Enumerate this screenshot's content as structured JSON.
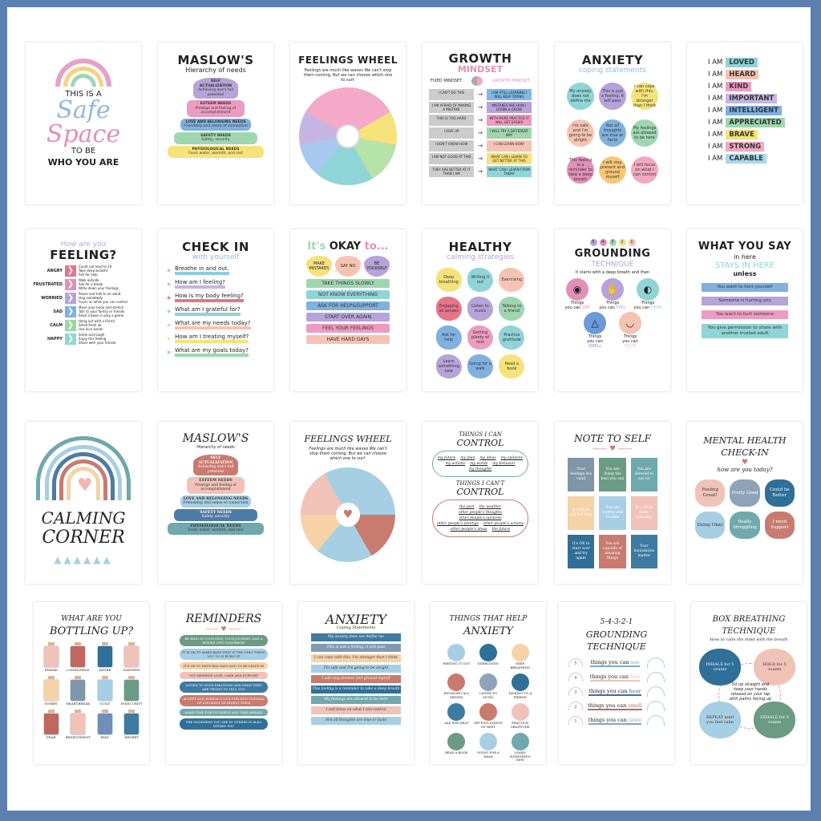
{
  "colors": {
    "border": "#5b7fae",
    "background": "#ffffff"
  },
  "posters": [
    {
      "title_lines": [
        "THIS IS A",
        "Safe",
        "Space",
        "TO BE",
        "WHO YOU ARE"
      ]
    },
    {
      "title": "MASLOW'S",
      "subtitle": "Hierarchy of needs",
      "levels": [
        {
          "name": "SELF ACTUALIZATION",
          "desc": "Achieving one's full potential",
          "color": "#b6a3d9"
        },
        {
          "name": "ESTEEM NEEDS",
          "desc": "Prestige and feeling of accomplishment",
          "color": "#ec9cc0"
        },
        {
          "name": "LOVE AND BELONGING NEEDS",
          "desc": "Friendship and sense of connection",
          "color": "#7fb0e0"
        },
        {
          "name": "SAFETY NEEDS",
          "desc": "Safety, security",
          "color": "#9fd6b0"
        },
        {
          "name": "PHYSIOLOGICAL NEEDS",
          "desc": "Food, water, warmth, and rest",
          "color": "#f6e27a"
        }
      ]
    },
    {
      "title": "FEELINGS WHEEL",
      "caption": "Feelings are much like waves We can't stop them coming, But we can choose which one to surf."
    },
    {
      "title": "GROWTH",
      "subtitle": "MINDSET",
      "col_fixed": "FIXED MINDSET",
      "col_growth": "GROWTH MINDSET",
      "rows": [
        {
          "fixed": "I CAN'T DO THIS",
          "growth": "I AM STILL LEARNING I WILL KEEP TRYING",
          "color": "#7fb8e6"
        },
        {
          "fixed": "I AM AFRAID OF MAKING A MISTAKE",
          "growth": "MISTAKES ARE HOW I LEARN & GROW",
          "color": "#b6a3d9"
        },
        {
          "fixed": "THIS IS TOO HARD",
          "growth": "WITH MORE PRACTICE IT WILL GET EASIER",
          "color": "#ec9cc0"
        },
        {
          "fixed": "I GIVE UP",
          "growth": "I WILL TRY A DIFFERENT WAY",
          "color": "#9fd6b0"
        },
        {
          "fixed": "I DON'T KNOW HOW",
          "growth": "I CAN LEARN HOW!",
          "color": "#f6c3b2"
        },
        {
          "fixed": "I AM NOT GOOD AT THIS",
          "growth": "WHAT CAN I LEARN TO GET BETTER AT THIS",
          "color": "#f6e27a"
        },
        {
          "fixed": "THEY ARE BETTER AT IT THAN I AM",
          "growth": "WHAT CAN I LEARN FROM THEM?",
          "color": "#8fd4d6"
        }
      ]
    },
    {
      "title": "ANXIETY",
      "subtitle": "coping statements",
      "items": [
        {
          "text": "My anxiety does not define me",
          "color": "#8fd4d6"
        },
        {
          "text": "This is just a feeling. It will pass",
          "color": "#b6a3d9"
        },
        {
          "text": "I can cope with this. I'm stronger than I think",
          "color": "#f6e27a"
        },
        {
          "text": "I'm safe and I'm going to be alright",
          "color": "#f6c3b2"
        },
        {
          "text": "Not all thoughts are true or facts",
          "color": "#7fb0e0"
        },
        {
          "text": "My feelings are allowed to be here",
          "color": "#9fd6b0"
        },
        {
          "text": "This feeling is a reminder to take a deep breath",
          "color": "#e38fb8"
        },
        {
          "text": "I will stay present and ground myself",
          "color": "#f7c873"
        },
        {
          "text": "I will focus on what I can control",
          "color": "#f2a8c0"
        }
      ]
    },
    {
      "prefix": "I AM",
      "items": [
        {
          "word": "LOVED",
          "color": "#8fd4d6"
        },
        {
          "word": "HEARD",
          "color": "#f6c3b2"
        },
        {
          "word": "KIND",
          "color": "#ec9cc0"
        },
        {
          "word": "IMPORTANT",
          "color": "#c4b5e3"
        },
        {
          "word": "INTELLIGENT",
          "color": "#7fb0e0"
        },
        {
          "word": "APPRECIATED",
          "color": "#9fd6b0"
        },
        {
          "word": "BRAVE",
          "color": "#f6e27a"
        },
        {
          "word": "STRONG",
          "color": "#f2a8c0"
        },
        {
          "word": "CAPABLE",
          "color": "#a8d8ea"
        }
      ]
    },
    {
      "title_top": "How are you",
      "title": "FEELING?",
      "rows": [
        {
          "feeling": "ANGRY",
          "color": "#e8748a",
          "tips": [
            "Count out loud to 10",
            "Take deep breaths",
            "Ask for help"
          ]
        },
        {
          "feeling": "FRUSTRATED",
          "color": "#e38fb8",
          "tips": [
            "Walk outside",
            "Ask for a break",
            "Write down your feelings"
          ]
        },
        {
          "feeling": "WORRIED",
          "color": "#b6a3d9",
          "tips": [
            "Pause and talk to an adult",
            "Hug somebody",
            "Focus on what you can control"
          ]
        },
        {
          "feeling": "SAD",
          "color": "#7fb0e0",
          "tips": [
            "Move your body and stretch",
            "Talk to your family or friends",
            "Read a book or play a game"
          ]
        },
        {
          "feeling": "CALM",
          "color": "#9fd6a0",
          "tips": [
            "Hang out with a friend",
            "Smell fresh air",
            "Use nice words"
          ]
        },
        {
          "feeling": "HAPPY",
          "color": "#8fd4d6",
          "tips": [
            "Smile and laugh",
            "Enjoy this feeling",
            "Share with your friends"
          ]
        }
      ]
    },
    {
      "title": "CHECK IN",
      "subtitle": "with yourself",
      "items": [
        {
          "text": "Breathe in and out.",
          "color": "#8fcbe0"
        },
        {
          "text": "How am I feeling?",
          "color": "#c4b5e3"
        },
        {
          "text": "How is my body feeling?",
          "color": "#e8748a"
        },
        {
          "text": "What am I grateful for?",
          "color": "#8fd4d6"
        },
        {
          "text": "What are my needs today?",
          "color": "#f6c3b2"
        },
        {
          "text": "How am I treating myself?",
          "color": "#f6e27a"
        },
        {
          "text": "What are my goals today?",
          "color": "#9fd6b0"
        }
      ]
    },
    {
      "title_a": "It's",
      "title_b": "OKAY",
      "title_c": "to...",
      "hearts": [
        {
          "text": "MAKE MISTAKES",
          "color": "#f6e27a"
        },
        {
          "text": "SAY NO",
          "color": "#f6c3b2"
        },
        {
          "text": "BE YOURSELF",
          "color": "#b6a3d9"
        }
      ],
      "items": [
        {
          "text": "TAKE THINGS SLOWLY",
          "color": "#9fd6b0"
        },
        {
          "text": "NOT KNOW EVERYTHING",
          "color": "#8fd4d6"
        },
        {
          "text": "ASK FOR HELP&SUPPORT",
          "color": "#7fb0e0"
        },
        {
          "text": "START OVER AGAIN",
          "color": "#b6a3d9"
        },
        {
          "text": "FEEL YOUR FEELINGS",
          "color": "#ec9cc0"
        },
        {
          "text": "HAVE HARD DAYS",
          "color": "#f6c3b2"
        }
      ]
    },
    {
      "title": "HEALTHY",
      "subtitle": "calming strategies",
      "items": [
        {
          "text": "Deep breathing",
          "color": "#f6e27a"
        },
        {
          "text": "Writing it out",
          "color": "#8fd4d6"
        },
        {
          "text": "Exercising",
          "color": "#f6c3b2"
        },
        {
          "text": "Engaging all senses",
          "color": "#e8748a"
        },
        {
          "text": "Listen to music",
          "color": "#b6a3d9"
        },
        {
          "text": "Talking to a friend",
          "color": "#9fd6b0"
        },
        {
          "text": "Ask for help",
          "color": "#7fb0e0"
        },
        {
          "text": "Getting plenty of rest",
          "color": "#ec9cc0"
        },
        {
          "text": "Practice gratitude",
          "color": "#8fd4d6"
        },
        {
          "text": "Learn something new",
          "color": "#b6a3d9"
        },
        {
          "text": "Going for a walk",
          "color": "#7fb0e0"
        },
        {
          "text": "Read a book",
          "color": "#f6e27a"
        }
      ]
    },
    {
      "steps": [
        "5",
        "4",
        "3",
        "2",
        "1"
      ],
      "title": "GROUNDING",
      "subtitle": "TECHNIQUE",
      "intro": "It starts with a deep breath and then",
      "senses": [
        {
          "num": "1",
          "line1": "Things",
          "line2": "you can",
          "sense": "SEE",
          "icon": "eye-icon",
          "color": "#e38fb8"
        },
        {
          "num": "2",
          "line1": "Things",
          "line2": "you can",
          "sense": "FEEL",
          "icon": "hand-icon",
          "color": "#b6a3d9"
        },
        {
          "num": "3",
          "line1": "Things",
          "line2": "you can",
          "sense": "HEAR",
          "icon": "ear-icon",
          "color": "#8fd4d6"
        },
        {
          "num": "4",
          "line1": "Things",
          "line2": "you can",
          "sense": "SMELL",
          "icon": "nose-icon",
          "color": "#6a9ad8"
        },
        {
          "num": "5",
          "line1": "Things",
          "line2": "you can",
          "sense": "TASTE",
          "icon": "mouth-icon",
          "color": "#f6c3b2"
        }
      ]
    },
    {
      "title": "WHAT YOU SAY",
      "line2": "in here",
      "line3": "STAYS IN HERE",
      "line4": "unless",
      "items": [
        {
          "text": "You want to hurt yourself",
          "color": "#7fb0e0"
        },
        {
          "text": "Someone is hurting you",
          "color": "#b6a3d9"
        },
        {
          "text": "You want to hurt someone",
          "color": "#ec9cc0"
        },
        {
          "text": "You give permission to share with another trusted adult",
          "color": "#8fd4d6"
        }
      ]
    },
    {
      "title_1": "CALMING",
      "title_2": "CORNER"
    },
    {
      "title": "MASLOW'S",
      "subtitle": "Hierarchy of needs",
      "levels": [
        {
          "name": "SELF ACTUALIZATION",
          "desc": "Achieving one's full potential",
          "color": "#c97b6f"
        },
        {
          "name": "ESTEEM NEEDS",
          "desc": "Prestige and feeling of accomplishment",
          "color": "#f1c2b8"
        },
        {
          "name": "LOVE AND BELONGING NEEDS",
          "desc": "Friendship and sense of connection",
          "color": "#a7cfe3"
        },
        {
          "name": "SAFETY NEEDS",
          "desc": "Safety, security",
          "color": "#4f7aa5"
        },
        {
          "name": "PHYSIOLOGICAL NEEDS",
          "desc": "Food, water, warmth, and rest",
          "color": "#6fa8ad"
        }
      ]
    },
    {
      "title": "FEELINGS WHEEL",
      "caption": "Feelings are much like waves We can't stop them coming, But we can choose which one to surf."
    },
    {
      "title_can": "THINGS I CAN",
      "control": "CONTROL",
      "title_cant": "THINGS I CAN'T",
      "can": [
        "my future",
        "my plan",
        "my ideas",
        "my opinions",
        "my actions",
        "my words",
        "my behavior",
        "my thoughts"
      ],
      "cant": [
        "the past",
        "the weather",
        "other people's thoughts",
        "other people's opinions",
        "other people's feelings",
        "other people's actions",
        "other people's ideas",
        "the future"
      ]
    },
    {
      "title": "NOTE TO SELF",
      "notes": [
        {
          "text": "Your feelings are valid",
          "color": "#7f95a8"
        },
        {
          "text": "You are doing the best you can",
          "color": "#6b9b85"
        },
        {
          "text": "You are allowed to say no",
          "color": "#6fa8ad"
        },
        {
          "text": "It's OK to ask for help",
          "color": "#f6d2a8"
        },
        {
          "text": "You are worthy and lovable",
          "color": "#a7cfe3"
        },
        {
          "text": "It's OK to make mistakes",
          "color": "#f1c2b8"
        },
        {
          "text": "It's OK to start over and try again",
          "color": "#2f6f98"
        },
        {
          "text": "You are capable of amazing things",
          "color": "#c97b6f"
        },
        {
          "text": "Your boundaries matter",
          "color": "#3f7aa0"
        }
      ]
    },
    {
      "title_1": "MENTAL HEALTH",
      "title_2": "CHECK-IN",
      "question": "how are you today?",
      "bubbles": [
        {
          "text": "Feeling Great!",
          "color": "#f1c2b8"
        },
        {
          "text": "Pretty Good",
          "color": "#8ea3b8"
        },
        {
          "text": "Could be Better",
          "color": "#2f6f98"
        },
        {
          "text": "Doing Okay",
          "color": "#a7cfe3"
        },
        {
          "text": "Really Struggling",
          "color": "#6fa8ad"
        },
        {
          "text": "I need Support",
          "color": "#c97b6f"
        }
      ]
    },
    {
      "title_1": "WHAT ARE YOU",
      "title_2": "BOTTLING UP?",
      "bottles": [
        {
          "label": "SHAME",
          "color": "#f1c2b8"
        },
        {
          "label": "LONELINESS",
          "color": "#c0675e"
        },
        {
          "label": "ANGER",
          "color": "#2f6f98"
        },
        {
          "label": "SADNESS",
          "color": "#f1c2b8"
        },
        {
          "label": "WORRY",
          "color": "#f6d2a8"
        },
        {
          "label": "HEARTBREAK",
          "color": "#7f95a8"
        },
        {
          "label": "GUILT",
          "color": "#a7cfe3"
        },
        {
          "label": "INSECURITY",
          "color": "#6b9b85"
        },
        {
          "label": "FEAR",
          "color": "#c0675e"
        },
        {
          "label": "RESENTMENT",
          "color": "#f1c2b8"
        },
        {
          "label": "PAIN",
          "color": "#6f8fb8"
        },
        {
          "label": "REGRET",
          "color": "#3f7aa0"
        }
      ]
    },
    {
      "title": "REMINDERS",
      "items": [
        {
          "text": "BE KIND IN YOUR SELF, YOUR JOURNEY, AND A BIGGER LIFE TOMORROW",
          "color": "#6b9b85"
        },
        {
          "text": "IT IS OK TO MAKE BASE THAT IS THE ONLY THING YOU TO IS BURN UP",
          "color": "#a7cfe3"
        },
        {
          "text": "IT'S OK TO HAVE BAD DAYS AND TO BE LEAVE IN",
          "color": "#f6d2a8"
        },
        {
          "text": "YOU DESERVE LOVE, CARE AND SUPPORT",
          "color": "#f1c2b8"
        },
        {
          "text": "LISTEN TO YOUR EMOTIONS AND WHAT THEY ARE TRYING TO TELL YOU",
          "color": "#3f7aa0"
        },
        {
          "text": "ACCEPT AND EMBRACE OUR FEELINGS INSTEAD OF IGNORING OR HIDING THEM",
          "color": "#c97b6f"
        },
        {
          "text": "MAKE TIME FOR YOURSELF AND TAKE BREAKS",
          "color": "#6fa8ad"
        },
        {
          "text": "THE GOODNESS YOU SEE IN OTHERS IS ALSO WITHIN YOU",
          "color": "#2f6f98"
        }
      ]
    },
    {
      "title": "ANXIETY",
      "subtitle": "Coping Statements",
      "items": [
        {
          "text": "My anxiety does not define me",
          "color": "#3f7aa0"
        },
        {
          "text": "This is just a feeling, it will pass",
          "color": "#7f9bb5"
        },
        {
          "text": "I can cope with this. I'm stronger than I think",
          "color": "#f6d2a8"
        },
        {
          "text": "I'm safe and I'm going to be alright",
          "color": "#a7cfe3"
        },
        {
          "text": "I will stay present and ground myself",
          "color": "#c97b6f"
        },
        {
          "text": "This feeling is a reminder to take a deep breath",
          "color": "#2f6f98"
        },
        {
          "text": "My feelings are allowed to be here",
          "color": "#6fa8ad"
        },
        {
          "text": "I will focus on what I can control",
          "color": "#f1c2b8"
        },
        {
          "text": "Not all thoughts are true or facts",
          "color": "#a7cfe3"
        }
      ]
    },
    {
      "title_1": "THINGS THAT HELP",
      "title_2": "ANXIETY",
      "items": [
        {
          "text": "WRITING IT OUT",
          "color": "#a7cfe3"
        },
        {
          "text": "EXERCISING",
          "color": "#2f6f98"
        },
        {
          "text": "DEEP BREATHING",
          "color": "#f6d2a8"
        },
        {
          "text": "ENGAGING ALL SENSES",
          "color": "#c97b6f"
        },
        {
          "text": "LISTEN TO MUSIC",
          "color": "#8ea3b8"
        },
        {
          "text": "TALKING TO A FRIEND",
          "color": "#2f6f98"
        },
        {
          "text": "ASK FOR HELP",
          "color": "#3f7aa0"
        },
        {
          "text": "GETTING PLENTY OF REST",
          "color": "#c97b6f"
        },
        {
          "text": "PRACTICE GRATITUDE",
          "color": "#f1c2b8"
        },
        {
          "text": "READ A BOOK",
          "color": "#6b9b85"
        },
        {
          "text": "GOING FOR A WALK",
          "color": "#a7cfe3"
        },
        {
          "text": "LEARN SOMETHING NEW",
          "color": "#6fa8ad"
        }
      ]
    },
    {
      "title_1": "5-4-3-2-1",
      "title_2": "GROUNDING",
      "title_3": "TECHNIQUE",
      "items": [
        {
          "num": "5",
          "prefix": "things you can",
          "sense": "see",
          "color": "#7fa8c8"
        },
        {
          "num": "4",
          "prefix": "things you can",
          "sense": "feel",
          "color": "#f1c2b8"
        },
        {
          "num": "3",
          "prefix": "things you can",
          "sense": "hear",
          "color": "#3f6f98"
        },
        {
          "num": "2",
          "prefix": "things you can",
          "sense": "smell",
          "color": "#c0675e"
        },
        {
          "num": "1",
          "prefix": "things you can",
          "sense": "taste",
          "color": "#7fa8c8"
        }
      ]
    },
    {
      "title_1": "BOX BREATHING",
      "title_2": "TECHNIQUE",
      "subtitle": "How to calm the mind with the breath",
      "center": "Sit up straight and keep your hands relaxed on your lap with palms facing up",
      "steps": [
        {
          "text": "INHALE for 5 counts",
          "color": "#2f6f98"
        },
        {
          "text": "HOLD for 5 counts",
          "color": "#f1c2b8"
        },
        {
          "text": "EXHALE for 5 counts",
          "color": "#6b9b85"
        },
        {
          "text": "REPEAT until you feel calm",
          "color": "#a7cfe3"
        }
      ]
    }
  ]
}
